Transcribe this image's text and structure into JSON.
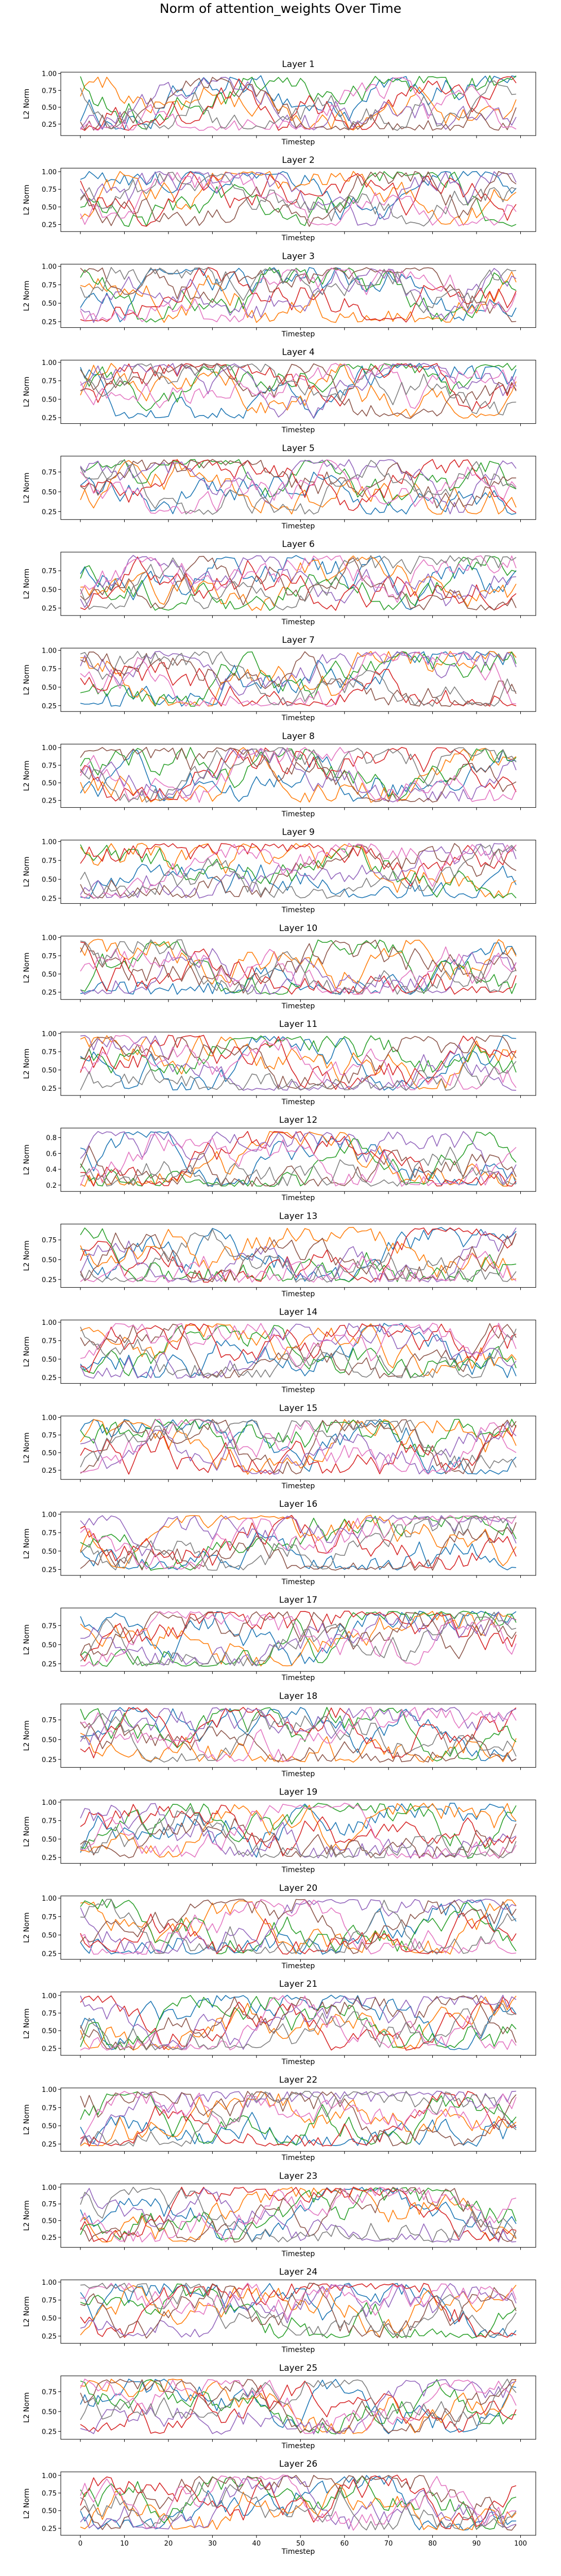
{
  "figure": {
    "suptitle": "Norm of attention_weights Over Time",
    "series_colors": [
      "#1f77b4",
      "#ff7f0e",
      "#2ca02c",
      "#d62728",
      "#9467bd",
      "#8c564b",
      "#e377c2",
      "#7f7f7f"
    ]
  },
  "chart_data": {
    "type": "line",
    "layout": "26 vertically stacked line subplots with shared x-axis",
    "grid": false,
    "legend": "none",
    "x": {
      "label": "Timestep",
      "range": [
        0,
        99
      ],
      "ticks": [
        0,
        10,
        20,
        30,
        40,
        50,
        60,
        70,
        80,
        90,
        100
      ]
    },
    "series_per_panel": 8,
    "points_per_series": 100,
    "note": "Individual line values are too dense to read; each series is approximated by a deterministic random walk within the panel's value range.",
    "panels": [
      {
        "title": "Layer 1",
        "ylabel": "L2 Norm",
        "ylim": [
          0.08,
          1.02
        ],
        "yticks": [
          "0.25",
          "0.50",
          "0.75",
          "1.00"
        ],
        "xlabel": "Timestep"
      },
      {
        "title": "Layer 2",
        "ylabel": "L2 Norm",
        "ylim": [
          0.15,
          1.05
        ],
        "yticks": [
          "0.25",
          "0.50",
          "0.75",
          "1.00"
        ],
        "xlabel": "Timestep"
      },
      {
        "title": "Layer 3",
        "ylabel": "L2 Norm",
        "ylim": [
          0.17,
          1.03
        ],
        "yticks": [
          "0.25",
          "0.50",
          "0.75",
          "1.00"
        ],
        "xlabel": "Timestep"
      },
      {
        "title": "Layer 4",
        "ylabel": "L2 Norm",
        "ylim": [
          0.17,
          1.03
        ],
        "yticks": [
          "0.25",
          "0.50",
          "0.75",
          "1.00"
        ],
        "xlabel": "Timestep"
      },
      {
        "title": "Layer 5",
        "ylabel": "L2 Norm",
        "ylim": [
          0.15,
          0.95
        ],
        "yticks": [
          "0.25",
          "0.50",
          "0.75"
        ],
        "xlabel": "Timestep"
      },
      {
        "title": "Layer 6",
        "ylabel": "L2 Norm",
        "ylim": [
          0.15,
          1.0
        ],
        "yticks": [
          "0.25",
          "0.50",
          "0.75"
        ],
        "xlabel": "Timestep"
      },
      {
        "title": "Layer 7",
        "ylabel": "L2 Norm",
        "ylim": [
          0.17,
          1.03
        ],
        "yticks": [
          "0.25",
          "0.50",
          "0.75",
          "1.00"
        ],
        "xlabel": "Timestep"
      },
      {
        "title": "Layer 8",
        "ylabel": "L2 Norm",
        "ylim": [
          0.15,
          1.05
        ],
        "yticks": [
          "0.25",
          "0.50",
          "0.75",
          "1.00"
        ],
        "xlabel": "Timestep"
      },
      {
        "title": "Layer 9",
        "ylabel": "L2 Norm",
        "ylim": [
          0.18,
          1.02
        ],
        "yticks": [
          "0.25",
          "0.50",
          "0.75",
          "1.00"
        ],
        "xlabel": "Timestep"
      },
      {
        "title": "Layer 10",
        "ylabel": "L2 Norm",
        "ylim": [
          0.15,
          1.02
        ],
        "yticks": [
          "0.25",
          "0.50",
          "0.75",
          "1.00"
        ],
        "xlabel": "Timestep"
      },
      {
        "title": "Layer 11",
        "ylabel": "L2 Norm",
        "ylim": [
          0.15,
          1.02
        ],
        "yticks": [
          "0.25",
          "0.50",
          "0.75",
          "1.00"
        ],
        "xlabel": "Timestep"
      },
      {
        "title": "Layer 12",
        "ylabel": "L2 Norm",
        "ylim": [
          0.12,
          0.92
        ],
        "yticks": [
          "0.2",
          "0.4",
          "0.6",
          "0.8"
        ],
        "xlabel": "Timestep"
      },
      {
        "title": "Layer 13",
        "ylabel": "L2 Norm",
        "ylim": [
          0.15,
          0.95
        ],
        "yticks": [
          "0.25",
          "0.50",
          "0.75"
        ],
        "xlabel": "Timestep"
      },
      {
        "title": "Layer 14",
        "ylabel": "L2 Norm",
        "ylim": [
          0.17,
          1.03
        ],
        "yticks": [
          "0.25",
          "0.50",
          "0.75",
          "1.00"
        ],
        "xlabel": "Timestep"
      },
      {
        "title": "Layer 15",
        "ylabel": "L2 Norm",
        "ylim": [
          0.12,
          1.02
        ],
        "yticks": [
          "0.25",
          "0.50",
          "0.75",
          "1.00"
        ],
        "xlabel": "Timestep"
      },
      {
        "title": "Layer 16",
        "ylabel": "L2 Norm",
        "ylim": [
          0.17,
          1.03
        ],
        "yticks": [
          "0.25",
          "0.50",
          "0.75",
          "1.00"
        ],
        "xlabel": "Timestep"
      },
      {
        "title": "Layer 17",
        "ylabel": "L2 Norm",
        "ylim": [
          0.15,
          0.98
        ],
        "yticks": [
          "0.25",
          "0.50",
          "0.75"
        ],
        "xlabel": "Timestep"
      },
      {
        "title": "Layer 18",
        "ylabel": "L2 Norm",
        "ylim": [
          0.15,
          0.95
        ],
        "yticks": [
          "0.25",
          "0.50",
          "0.75"
        ],
        "xlabel": "Timestep"
      },
      {
        "title": "Layer 19",
        "ylabel": "L2 Norm",
        "ylim": [
          0.17,
          1.03
        ],
        "yticks": [
          "0.25",
          "0.50",
          "0.75",
          "1.00"
        ],
        "xlabel": "Timestep"
      },
      {
        "title": "Layer 20",
        "ylabel": "L2 Norm",
        "ylim": [
          0.17,
          1.03
        ],
        "yticks": [
          "0.25",
          "0.50",
          "0.75",
          "1.00"
        ],
        "xlabel": "Timestep"
      },
      {
        "title": "Layer 21",
        "ylabel": "L2 Norm",
        "ylim": [
          0.15,
          1.05
        ],
        "yticks": [
          "0.25",
          "0.50",
          "0.75",
          "1.00"
        ],
        "xlabel": "Timestep"
      },
      {
        "title": "Layer 22",
        "ylabel": "L2 Norm",
        "ylim": [
          0.15,
          1.02
        ],
        "yticks": [
          "0.25",
          "0.50",
          "0.75",
          "1.00"
        ],
        "xlabel": "Timestep"
      },
      {
        "title": "Layer 23",
        "ylabel": "L2 Norm",
        "ylim": [
          0.1,
          1.05
        ],
        "yticks": [
          "0.25",
          "0.50",
          "0.75",
          "1.00"
        ],
        "xlabel": "Timestep"
      },
      {
        "title": "Layer 24",
        "ylabel": "L2 Norm",
        "ylim": [
          0.15,
          1.03
        ],
        "yticks": [
          "0.25",
          "0.50",
          "0.75",
          "1.00"
        ],
        "xlabel": "Timestep"
      },
      {
        "title": "Layer 25",
        "ylabel": "L2 Norm",
        "ylim": [
          0.15,
          0.95
        ],
        "yticks": [
          "0.25",
          "0.50",
          "0.75"
        ],
        "xlabel": "Timestep"
      },
      {
        "title": "Layer 26",
        "ylabel": "L2 Norm",
        "ylim": [
          0.15,
          1.05
        ],
        "yticks": [
          "0.25",
          "0.50",
          "0.75",
          "1.00"
        ],
        "xlabel": "Timestep"
      }
    ]
  }
}
